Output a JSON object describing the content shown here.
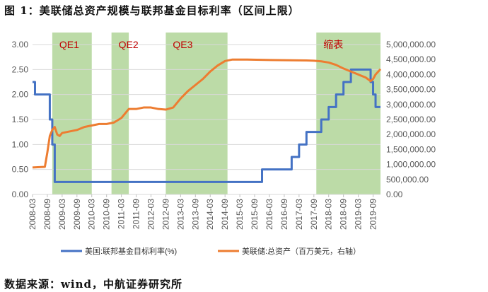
{
  "title": "图 1：美联储总资产规模与联邦基金目标利率（区间上限）",
  "source": "数据来源：wind，中航证券研究所",
  "colors": {
    "rate": "#4472C4",
    "assets": "#ED7D31",
    "band": "#A9D18E",
    "band_label": "#C00000",
    "grid": "#D9D9D9",
    "axis_text": "#595959"
  },
  "chart_data": {
    "type": "line",
    "title": "",
    "x_ticks": [
      "2008-03",
      "2008-09",
      "2009-03",
      "2009-09",
      "2010-03",
      "2010-09",
      "2011-03",
      "2011-09",
      "2012-03",
      "2012-09",
      "2013-03",
      "2013-09",
      "2014-03",
      "2014-09",
      "2015-03",
      "2015-09",
      "2016-03",
      "2016-09",
      "2017-03",
      "2017-09",
      "2018-03",
      "2018-09",
      "2019-03",
      "2019-09"
    ],
    "x_range": [
      "2008-03",
      "2019-12"
    ],
    "y_left": {
      "range": [
        0,
        3
      ],
      "ticks": [
        "0.00",
        "0.50",
        "1.00",
        "1.50",
        "2.00",
        "2.50",
        "3.00"
      ]
    },
    "y_right": {
      "range": [
        0,
        5000000
      ],
      "ticks": [
        "0.00",
        "500,000.00",
        "1,000,000.00",
        "1,500,000.00",
        "2,000,000.00",
        "2,500,000.00",
        "3,000,000.00",
        "3,500,000.00",
        "4,000,000.00",
        "4,500,000.00",
        "5,000,000.00"
      ]
    },
    "grid": true,
    "legend_position": "bottom",
    "bands": [
      {
        "label": "QE1",
        "start": "2008-11",
        "end": "2010-03"
      },
      {
        "label": "QE2",
        "start": "2010-11",
        "end": "2011-06"
      },
      {
        "label": "QE3",
        "start": "2012-09",
        "end": "2014-10"
      },
      {
        "label": "缩表",
        "start": "2017-10",
        "end": "2019-12"
      }
    ],
    "series": [
      {
        "name": "美国:联邦基金目标利率(%)",
        "axis": "left",
        "step": true,
        "points": [
          [
            "2008-03",
            2.25
          ],
          [
            "2008-04",
            2.0
          ],
          [
            "2008-10",
            1.5
          ],
          [
            "2008-11",
            1.0
          ],
          [
            "2008-12",
            0.25
          ],
          [
            "2015-12",
            0.5
          ],
          [
            "2016-12",
            0.75
          ],
          [
            "2017-03",
            1.0
          ],
          [
            "2017-06",
            1.25
          ],
          [
            "2017-12",
            1.5
          ],
          [
            "2018-03",
            1.75
          ],
          [
            "2018-06",
            2.0
          ],
          [
            "2018-09",
            2.25
          ],
          [
            "2018-12",
            2.5
          ],
          [
            "2019-08",
            2.25
          ],
          [
            "2019-09",
            2.0
          ],
          [
            "2019-10",
            1.75
          ],
          [
            "2019-12",
            1.75
          ]
        ]
      },
      {
        "name": "美联储:总资产（百万美元，右轴）",
        "axis": "right",
        "step": false,
        "points": [
          [
            "2008-03",
            900000
          ],
          [
            "2008-08",
            920000
          ],
          [
            "2008-09",
            1400000
          ],
          [
            "2008-10",
            1950000
          ],
          [
            "2008-11",
            2150000
          ],
          [
            "2008-12",
            2250000
          ],
          [
            "2009-01",
            2000000
          ],
          [
            "2009-02",
            1950000
          ],
          [
            "2009-03",
            2050000
          ],
          [
            "2009-06",
            2100000
          ],
          [
            "2009-09",
            2150000
          ],
          [
            "2009-12",
            2250000
          ],
          [
            "2010-03",
            2300000
          ],
          [
            "2010-06",
            2350000
          ],
          [
            "2010-09",
            2350000
          ],
          [
            "2010-12",
            2400000
          ],
          [
            "2011-03",
            2550000
          ],
          [
            "2011-06",
            2850000
          ],
          [
            "2011-09",
            2850000
          ],
          [
            "2011-12",
            2900000
          ],
          [
            "2012-03",
            2900000
          ],
          [
            "2012-06",
            2850000
          ],
          [
            "2012-09",
            2830000
          ],
          [
            "2012-12",
            2900000
          ],
          [
            "2013-03",
            3200000
          ],
          [
            "2013-06",
            3450000
          ],
          [
            "2013-09",
            3650000
          ],
          [
            "2013-12",
            3850000
          ],
          [
            "2014-03",
            4100000
          ],
          [
            "2014-06",
            4300000
          ],
          [
            "2014-09",
            4450000
          ],
          [
            "2014-12",
            4500000
          ],
          [
            "2015-06",
            4500000
          ],
          [
            "2016-06",
            4480000
          ],
          [
            "2017-06",
            4470000
          ],
          [
            "2017-09",
            4460000
          ],
          [
            "2017-12",
            4440000
          ],
          [
            "2018-03",
            4400000
          ],
          [
            "2018-06",
            4320000
          ],
          [
            "2018-09",
            4200000
          ],
          [
            "2018-12",
            4100000
          ],
          [
            "2019-03",
            4000000
          ],
          [
            "2019-06",
            3900000
          ],
          [
            "2019-08",
            3780000
          ],
          [
            "2019-09",
            3850000
          ],
          [
            "2019-10",
            4000000
          ],
          [
            "2019-12",
            4180000
          ]
        ]
      }
    ]
  }
}
